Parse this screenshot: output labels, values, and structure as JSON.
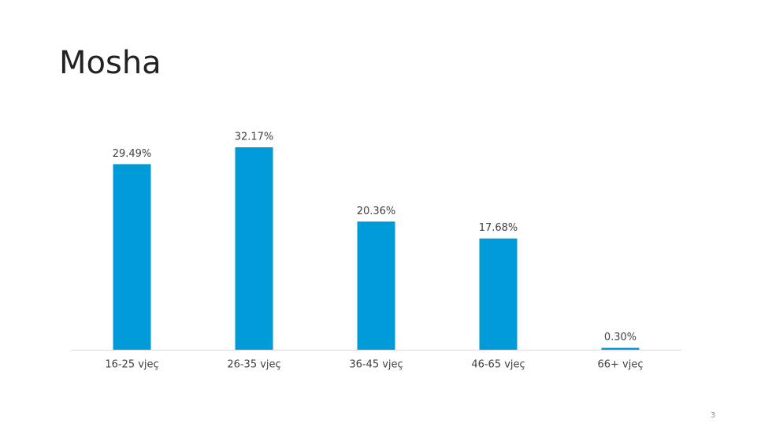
{
  "chart_data": {
    "type": "bar",
    "title": "Mosha",
    "categories": [
      "16-25 vjeç",
      "26-35 vjeç",
      "36-45 vjeç",
      "46-65 vjeç",
      "66+ vjeç"
    ],
    "values": [
      29.49,
      32.17,
      20.36,
      17.68,
      0.3
    ],
    "value_labels": [
      "29.49%",
      "32.17%",
      "20.36%",
      "17.68%",
      "0.30%"
    ],
    "color": "#009ad8"
  },
  "page_number": "3"
}
